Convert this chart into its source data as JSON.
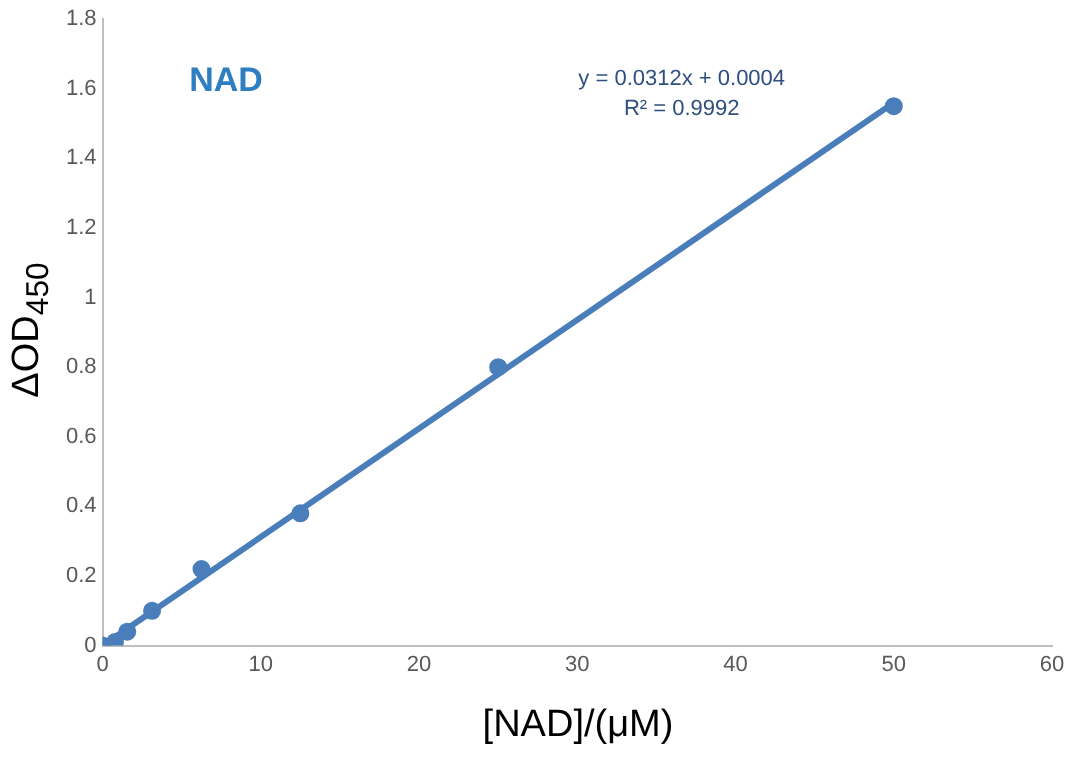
{
  "chart_data": {
    "type": "scatter",
    "title": "NAD",
    "xlabel": "[NAD]/(μM)",
    "ylabel": "ΔOD$_{450}$",
    "annotations": [
      "y = 0.0312x + 0.0004",
      "R² = 0.9992"
    ],
    "xlim": [
      0,
      60
    ],
    "xticks": [
      0,
      10,
      20,
      30,
      40,
      50,
      60
    ],
    "ylim": [
      0,
      1.8
    ],
    "yticks": [
      0,
      0.2,
      0.4,
      0.6,
      0.8,
      1,
      1.2,
      1.4,
      1.6,
      1.8
    ],
    "grid": false,
    "legend": false,
    "series": [
      {
        "type": "scatter",
        "color": "#4a7ebb",
        "marker": "circle",
        "x": [
          0,
          0.78,
          1.56,
          3.125,
          6.25,
          12.5,
          25,
          50
        ],
        "values": [
          0,
          0.01,
          0.04,
          0.1,
          0.22,
          0.38,
          0.8,
          1.55
        ]
      },
      {
        "type": "line",
        "color": "#4a7ebb",
        "marker": "none",
        "line_style": "solid",
        "x": [
          0,
          50
        ],
        "values": [
          0,
          1.56
        ]
      }
    ]
  }
}
